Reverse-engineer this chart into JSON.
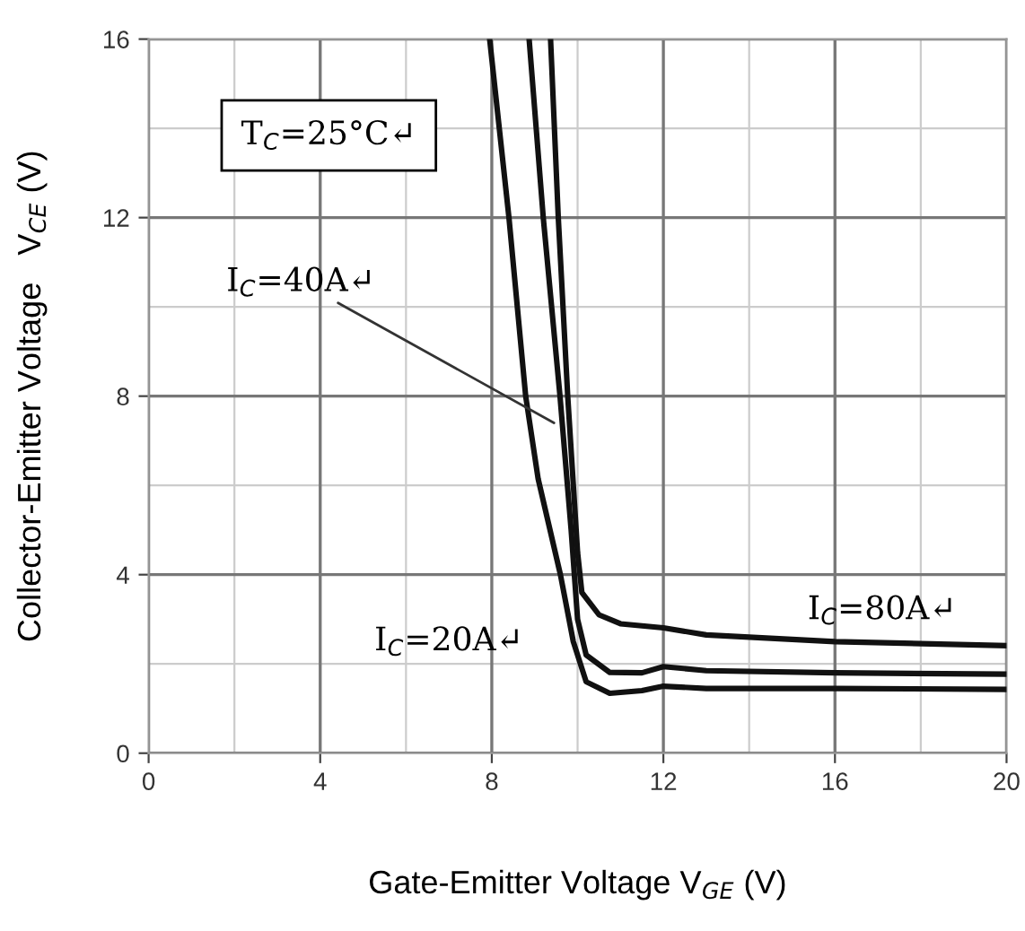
{
  "chart_data": {
    "type": "line",
    "xlabel": "Gate-Emitter Voltage V$_{GE}$ (V)",
    "ylabel": "Collector-Emitter Voltage   V$_{CE}$ (V)",
    "xlim": [
      0,
      20
    ],
    "ylim": [
      0,
      16
    ],
    "xticks": [
      0,
      4,
      8,
      12,
      16,
      20
    ],
    "yticks": [
      0,
      4,
      8,
      12,
      16
    ],
    "grid": true,
    "marker": "none",
    "line_style": "solid",
    "series": [
      {
        "color": "#111111",
        "x": [
          7.95,
          8.4,
          8.79,
          9.08,
          9.6,
          9.9,
          10.2,
          10.75,
          11.5,
          12,
          13,
          16,
          20
        ],
        "values": [
          16,
          12,
          8,
          6.15,
          4,
          2.5,
          1.6,
          1.34,
          1.4,
          1.5,
          1.45,
          1.45,
          1.43
        ]
      },
      {
        "color": "#111111",
        "x": [
          8.87,
          9.2,
          9.59,
          9.85,
          10.0,
          10.2,
          10.75,
          11.5,
          12,
          13,
          16,
          20
        ],
        "values": [
          16,
          12,
          8,
          5,
          3,
          2.2,
          1.81,
          1.8,
          1.94,
          1.85,
          1.8,
          1.77
        ]
      },
      {
        "color": "#111111",
        "x": [
          9.37,
          9.55,
          9.77,
          10.0,
          10.1,
          10.5,
          11,
          12,
          13,
          16,
          20
        ],
        "values": [
          16,
          12,
          8,
          4.5,
          3.6,
          3.1,
          2.9,
          2.81,
          2.65,
          2.5,
          2.41
        ]
      }
    ],
    "annotations": [
      "T$_{C}$=25°C↵",
      {
        "text": "I$_{C}$=40A↵",
        "x": 9.45,
        "y": 7.4
      },
      {
        "text": "I$_{C}$=20A↵",
        "x": 9.9,
        "y": 2.5
      },
      {
        "text": "I$_{C}$=80A↵",
        "x": 16,
        "y": 2.5
      }
    ]
  }
}
